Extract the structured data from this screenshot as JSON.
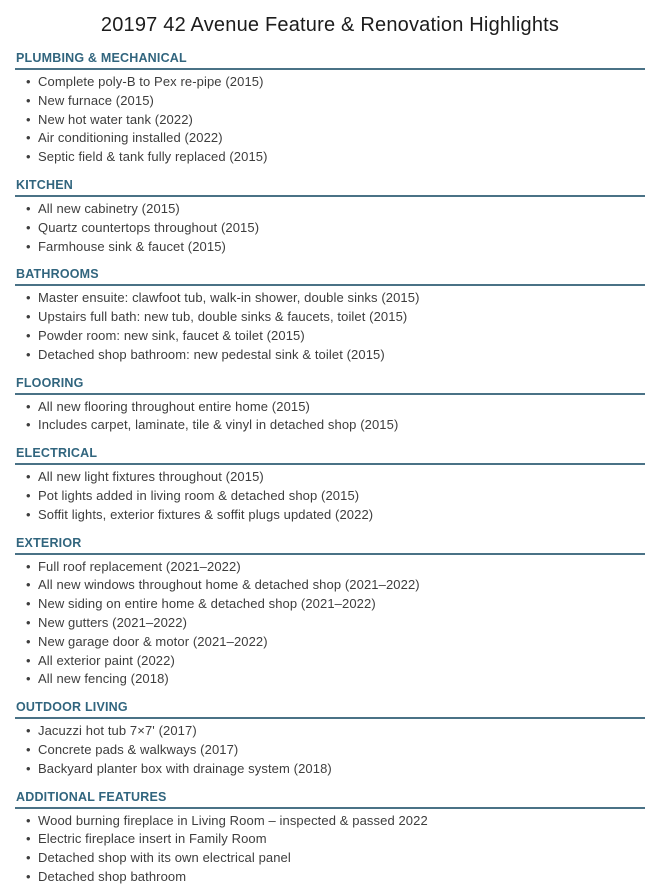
{
  "page": {
    "title": "20197 42 Avenue Feature & Renovation Highlights"
  },
  "colors": {
    "title": "#1c1c1c",
    "heading": "#31657e",
    "rule": "#4a7286",
    "body": "#3d3d3d"
  },
  "bullet_glyph": "•",
  "sections": [
    {
      "heading": "PLUMBING & MECHANICAL",
      "items": [
        "Complete poly-B to Pex re-pipe (2015)",
        "New furnace (2015)",
        "New hot water tank (2022)",
        "Air conditioning installed (2022)",
        "Septic field & tank fully replaced (2015)"
      ]
    },
    {
      "heading": "KITCHEN",
      "items": [
        "All new cabinetry (2015)",
        "Quartz countertops throughout (2015)",
        "Farmhouse sink & faucet (2015)"
      ]
    },
    {
      "heading": "BATHROOMS",
      "items": [
        "Master ensuite: clawfoot tub, walk-in shower, double sinks (2015)",
        "Upstairs full bath: new tub, double sinks & faucets, toilet (2015)",
        "Powder room: new sink, faucet & toilet (2015)",
        "Detached shop bathroom: new pedestal sink & toilet (2015)"
      ]
    },
    {
      "heading": "FLOORING",
      "items": [
        "All new flooring throughout entire home (2015)",
        "Includes carpet, laminate, tile & vinyl in detached shop (2015)"
      ]
    },
    {
      "heading": "ELECTRICAL",
      "items": [
        "All new light fixtures throughout (2015)",
        "Pot lights added in living room & detached shop (2015)",
        "Soffit lights, exterior fixtures & soffit plugs updated (2022)"
      ]
    },
    {
      "heading": "EXTERIOR",
      "items": [
        "Full roof replacement (2021–2022)",
        "All new windows throughout home & detached shop (2021–2022)",
        "New siding on entire home & detached shop (2021–2022)",
        "New gutters (2021–2022)",
        "New garage door & motor (2021–2022)",
        "All exterior paint (2022)",
        "All new fencing (2018)"
      ]
    },
    {
      "heading": "OUTDOOR LIVING",
      "items": [
        "Jacuzzi hot tub 7×7' (2017)",
        "Concrete pads & walkways (2017)",
        "Backyard planter box with drainage system (2018)"
      ]
    },
    {
      "heading": "ADDITIONAL FEATURES",
      "items": [
        "Wood burning fireplace in Living Room – inspected & passed 2022",
        "Electric fireplace insert in Family Room",
        "Detached shop with its own electrical panel",
        "Detached shop bathroom"
      ]
    }
  ]
}
